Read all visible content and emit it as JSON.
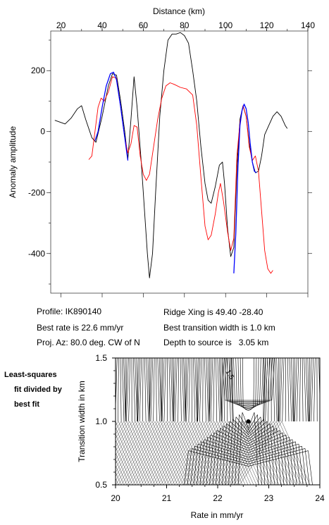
{
  "profile_plot": {
    "chart_data": {
      "type": "line",
      "xlabel": "Distance (km)",
      "ylabel": "Anomaly amplitude",
      "xlim": [
        15,
        140
      ],
      "ylim": [
        -530,
        330
      ],
      "x_ticks": [
        20,
        40,
        60,
        80,
        100,
        120,
        140
      ],
      "y_ticks": [
        200,
        0,
        -200,
        -400
      ],
      "x_tick_labels": [
        "20",
        "40",
        "60",
        "80",
        "100",
        "120",
        "140"
      ],
      "y_tick_labels": [
        "200",
        "0",
        "-200",
        "-400"
      ],
      "grid": false,
      "series": [
        {
          "color": "#000000",
          "points": [
            [
              17,
              37
            ],
            [
              20,
              30
            ],
            [
              22,
              25
            ],
            [
              25,
              45
            ],
            [
              28,
              75
            ],
            [
              30,
              85
            ],
            [
              32,
              40
            ],
            [
              35,
              -20
            ],
            [
              37,
              -35
            ],
            [
              40,
              50
            ],
            [
              43,
              150
            ],
            [
              45,
              190
            ],
            [
              47,
              185
            ],
            [
              49,
              100
            ],
            [
              51,
              0
            ],
            [
              52.5,
              -90
            ],
            [
              54,
              40
            ],
            [
              55.5,
              180
            ],
            [
              57,
              80
            ],
            [
              59,
              -100
            ],
            [
              61,
              -300
            ],
            [
              62,
              -400
            ],
            [
              63,
              -480
            ],
            [
              64.5,
              -400
            ],
            [
              66,
              -200
            ],
            [
              68,
              50
            ],
            [
              70,
              200
            ],
            [
              72,
              300
            ],
            [
              74,
              320
            ],
            [
              76,
              320
            ],
            [
              78,
              325
            ],
            [
              80,
              315
            ],
            [
              82,
              290
            ],
            [
              84,
              200
            ],
            [
              86,
              100
            ],
            [
              88,
              -50
            ],
            [
              90,
              -170
            ],
            [
              91.5,
              -225
            ],
            [
              93,
              -235
            ],
            [
              95,
              -180
            ],
            [
              97,
              -110
            ],
            [
              98.5,
              -100
            ],
            [
              99.5,
              -170
            ],
            [
              101,
              -320
            ],
            [
              102.5,
              -410
            ],
            [
              104,
              -380
            ],
            [
              105.5,
              -120
            ],
            [
              107,
              40
            ],
            [
              108.5,
              85
            ],
            [
              110,
              50
            ],
            [
              111.5,
              -40
            ],
            [
              113,
              -100
            ],
            [
              114.5,
              -135
            ],
            [
              116,
              -130
            ],
            [
              117.5,
              -80
            ],
            [
              119,
              -10
            ],
            [
              121,
              20
            ],
            [
              123,
              50
            ],
            [
              125,
              65
            ],
            [
              127,
              50
            ],
            [
              129,
              20
            ],
            [
              130,
              10
            ]
          ]
        },
        {
          "color": "#ff0000",
          "points": [
            [
              33.5,
              -92
            ],
            [
              35,
              -80
            ],
            [
              36.5,
              0
            ],
            [
              38,
              80
            ],
            [
              39.5,
              110
            ],
            [
              41,
              100
            ],
            [
              43,
              130
            ],
            [
              45,
              180
            ],
            [
              47,
              175
            ],
            [
              49,
              80
            ],
            [
              51,
              -20
            ],
            [
              52.5,
              -70
            ],
            [
              54,
              -40
            ],
            [
              55.5,
              20
            ],
            [
              57,
              15
            ],
            [
              58.5,
              -80
            ],
            [
              60,
              -140
            ],
            [
              61.5,
              -160
            ],
            [
              63,
              -140
            ],
            [
              65,
              -50
            ],
            [
              67,
              40
            ],
            [
              69,
              110
            ],
            [
              71,
              150
            ],
            [
              73,
              160
            ],
            [
              75,
              155
            ],
            [
              78,
              145
            ],
            [
              81,
              140
            ],
            [
              84,
              120
            ],
            [
              86,
              20
            ],
            [
              88,
              -150
            ],
            [
              90,
              -310
            ],
            [
              91.5,
              -355
            ],
            [
              93,
              -340
            ],
            [
              95,
              -270
            ],
            [
              96.5,
              -200
            ],
            [
              97.5,
              -170
            ],
            [
              99,
              -230
            ],
            [
              101,
              -330
            ],
            [
              102.5,
              -390
            ],
            [
              104,
              -350
            ],
            [
              105.5,
              -80
            ],
            [
              107,
              30
            ],
            [
              108.5,
              85
            ],
            [
              110,
              50
            ],
            [
              111.5,
              -50
            ],
            [
              113,
              -95
            ],
            [
              114.5,
              -80
            ],
            [
              116,
              -130
            ],
            [
              117.5,
              -260
            ],
            [
              119,
              -390
            ],
            [
              120.5,
              -450
            ],
            [
              122,
              -465
            ],
            [
              123,
              -455
            ]
          ]
        },
        {
          "color": "#0000ff",
          "points": [
            [
              36.5,
              -30
            ],
            [
              38,
              0
            ],
            [
              40,
              80
            ],
            [
              42,
              150
            ],
            [
              44,
              190
            ],
            [
              45.5,
              195
            ],
            [
              47,
              170
            ],
            [
              49,
              80
            ],
            [
              51,
              -20
            ],
            [
              52.5,
              -95
            ],
            [
              0,
              null
            ],
            [
              104,
              -465
            ],
            [
              105,
              -330
            ],
            [
              106,
              -120
            ],
            [
              107,
              20
            ],
            [
              108,
              70
            ],
            [
              109,
              90
            ],
            [
              110,
              75
            ],
            [
              111,
              30
            ],
            [
              112,
              -40
            ],
            [
              113,
              -100
            ],
            [
              114,
              -130
            ],
            [
              115,
              -135
            ]
          ]
        }
      ]
    },
    "info_left": [
      "Profile: IK890140",
      "Best rate is 22.6 mm/yr",
      "Proj. Az: 80.0 deg. CW of N"
    ],
    "info_right": [
      "Ridge Xing is 49.40 -28.40",
      "Best transition width is 1.0 km",
      "Depth to source is   3.05 km"
    ]
  },
  "misfit_plot": {
    "side_label": [
      "Least-squares",
      "fit divided by",
      "best fit"
    ],
    "chart_data": {
      "type": "contour",
      "xlabel": "Rate in mm/yr",
      "ylabel": "Transition width in km",
      "xlim": [
        20,
        24
      ],
      "ylim": [
        0.5,
        1.5
      ],
      "x_ticks": [
        20,
        21,
        22,
        23,
        24
      ],
      "y_ticks": [
        0.5,
        1.0,
        1.5
      ],
      "x_tick_labels": [
        "20",
        "21",
        "22",
        "23",
        "24"
      ],
      "y_tick_labels": [
        "0.5",
        "1.0",
        "1.5"
      ],
      "best_fit": {
        "rate": 22.6,
        "width": 1.0
      },
      "contour_annotation": "1.5",
      "annotation_at": {
        "rate": 22.2,
        "width": 1.36
      }
    }
  }
}
